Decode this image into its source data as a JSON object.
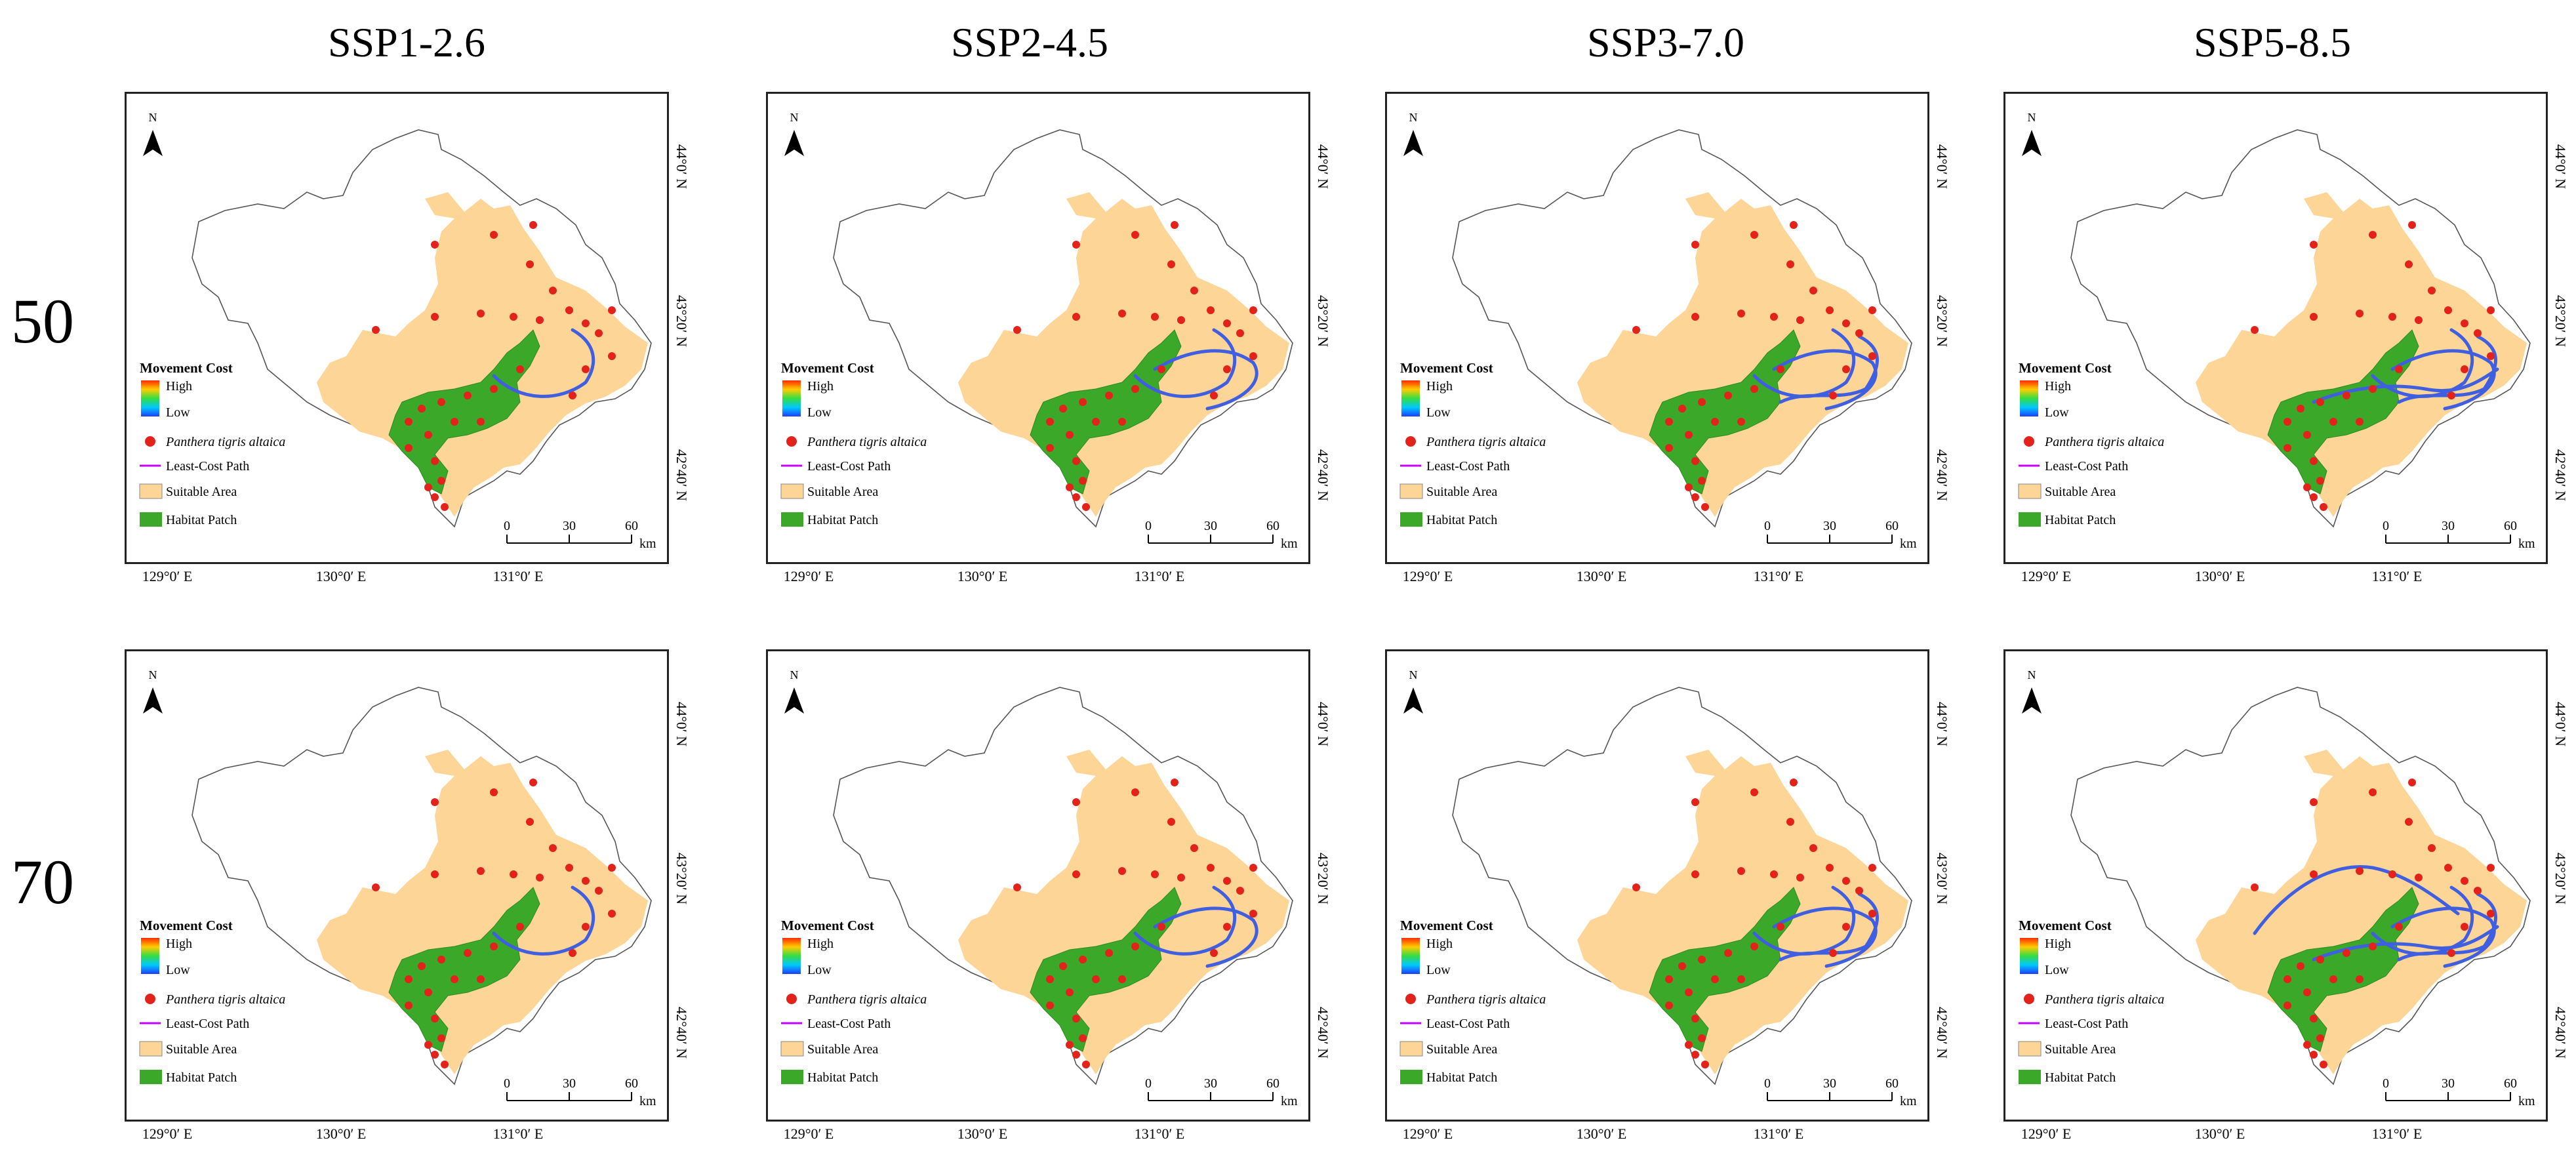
{
  "column_titles": [
    "SSP1-2.6",
    "SSP2-4.5",
    "SSP3-7.0",
    "SSP5-8.5"
  ],
  "row_titles": [
    "50",
    "70"
  ],
  "north_label": "N",
  "legend": {
    "movement_cost_title": "Movement Cost",
    "high": "High",
    "low": "Low",
    "species": "Panthera tigris altaica",
    "path": "Least-Cost Path",
    "suitable": "Suitable Area",
    "habitat": "Habitat Patch"
  },
  "scale_bar": {
    "ticks": [
      "0",
      "30",
      "60"
    ],
    "unit": "km"
  },
  "lon_labels": [
    "129°0′ E",
    "130°0′ E",
    "131°0′ E"
  ],
  "lat_labels": [
    "44°0′ N",
    "43°20′ N",
    "42°40′ N"
  ],
  "colors": {
    "suitable": "#fcd597",
    "habitat": "#3ba82a",
    "species_point": "#e3221c",
    "corridor": "#3f5fe0",
    "legend_path": "#c400ff",
    "boundary": "#555555"
  },
  "panels": [
    {
      "scenario": "SSP1-2.6",
      "year": "50",
      "corridors": 1
    },
    {
      "scenario": "SSP2-4.5",
      "year": "50",
      "corridors": 2
    },
    {
      "scenario": "SSP3-7.0",
      "year": "50",
      "corridors": 3
    },
    {
      "scenario": "SSP5-8.5",
      "year": "50",
      "corridors": 4
    },
    {
      "scenario": "SSP1-2.6",
      "year": "70",
      "corridors": 1
    },
    {
      "scenario": "SSP2-4.5",
      "year": "70",
      "corridors": 2
    },
    {
      "scenario": "SSP3-7.0",
      "year": "70",
      "corridors": 3
    },
    {
      "scenario": "SSP5-8.5",
      "year": "70",
      "corridors": 5
    }
  ]
}
